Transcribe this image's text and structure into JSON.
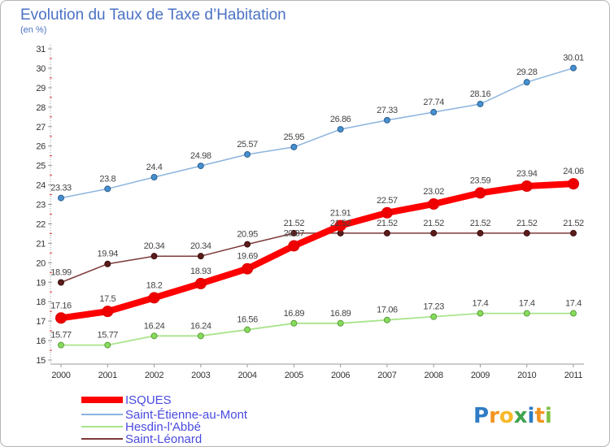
{
  "chart_data": {
    "type": "line",
    "title": "Evolution du Taux de Taxe d’Habitation",
    "subtitle": "(en %)",
    "xlabel": "",
    "ylabel": "",
    "x": [
      2000,
      2001,
      2002,
      2003,
      2004,
      2005,
      2006,
      2007,
      2008,
      2009,
      2010,
      2011
    ],
    "ylim": [
      15,
      31
    ],
    "yticks": [
      15,
      16,
      17,
      18,
      19,
      20,
      21,
      22,
      23,
      24,
      25,
      26,
      27,
      28,
      29,
      30,
      31
    ],
    "grid": false,
    "legend_position": "bottom-left",
    "series": [
      {
        "name": "ISQUES",
        "color": "#ff0000",
        "marker_color": "#ee0000",
        "marker_edge": "#dd0000",
        "values": [
          17.16,
          17.5,
          18.2,
          18.93,
          19.69,
          20.87,
          21.91,
          22.57,
          23.02,
          23.59,
          23.94,
          24.06
        ]
      },
      {
        "name": "Saint-Étienne-au-Mont",
        "color": "#8cb4de",
        "marker_color": "#4690d0",
        "marker_edge": "#2c5f8f",
        "values": [
          23.33,
          23.8,
          24.4,
          24.98,
          25.57,
          25.95,
          26.86,
          27.33,
          27.74,
          28.16,
          29.28,
          30.01
        ]
      },
      {
        "name": "Hesdin-l'Abbé",
        "color": "#a9e48c",
        "marker_color": "#86dc5c",
        "marker_edge": "#5c9c3c",
        "values": [
          15.77,
          15.77,
          16.24,
          16.24,
          16.56,
          16.89,
          16.89,
          17.06,
          17.23,
          17.4,
          17.4,
          17.4
        ]
      },
      {
        "name": "Saint-Léonard",
        "color": "#7e3a3a",
        "marker_color": "#5c1c1c",
        "marker_edge": "#3a0d0d",
        "values": [
          18.99,
          19.94,
          20.34,
          20.34,
          20.95,
          21.52,
          21.52,
          21.52,
          21.52,
          21.52,
          21.52,
          21.52
        ]
      }
    ]
  },
  "logo": {
    "text": "Proxiti",
    "letter_colors": [
      "#2e7cc4",
      "#f29420",
      "#f6b928",
      "#3fa34d",
      "#2e7cc4",
      "#f29420",
      "#7cc142"
    ]
  }
}
